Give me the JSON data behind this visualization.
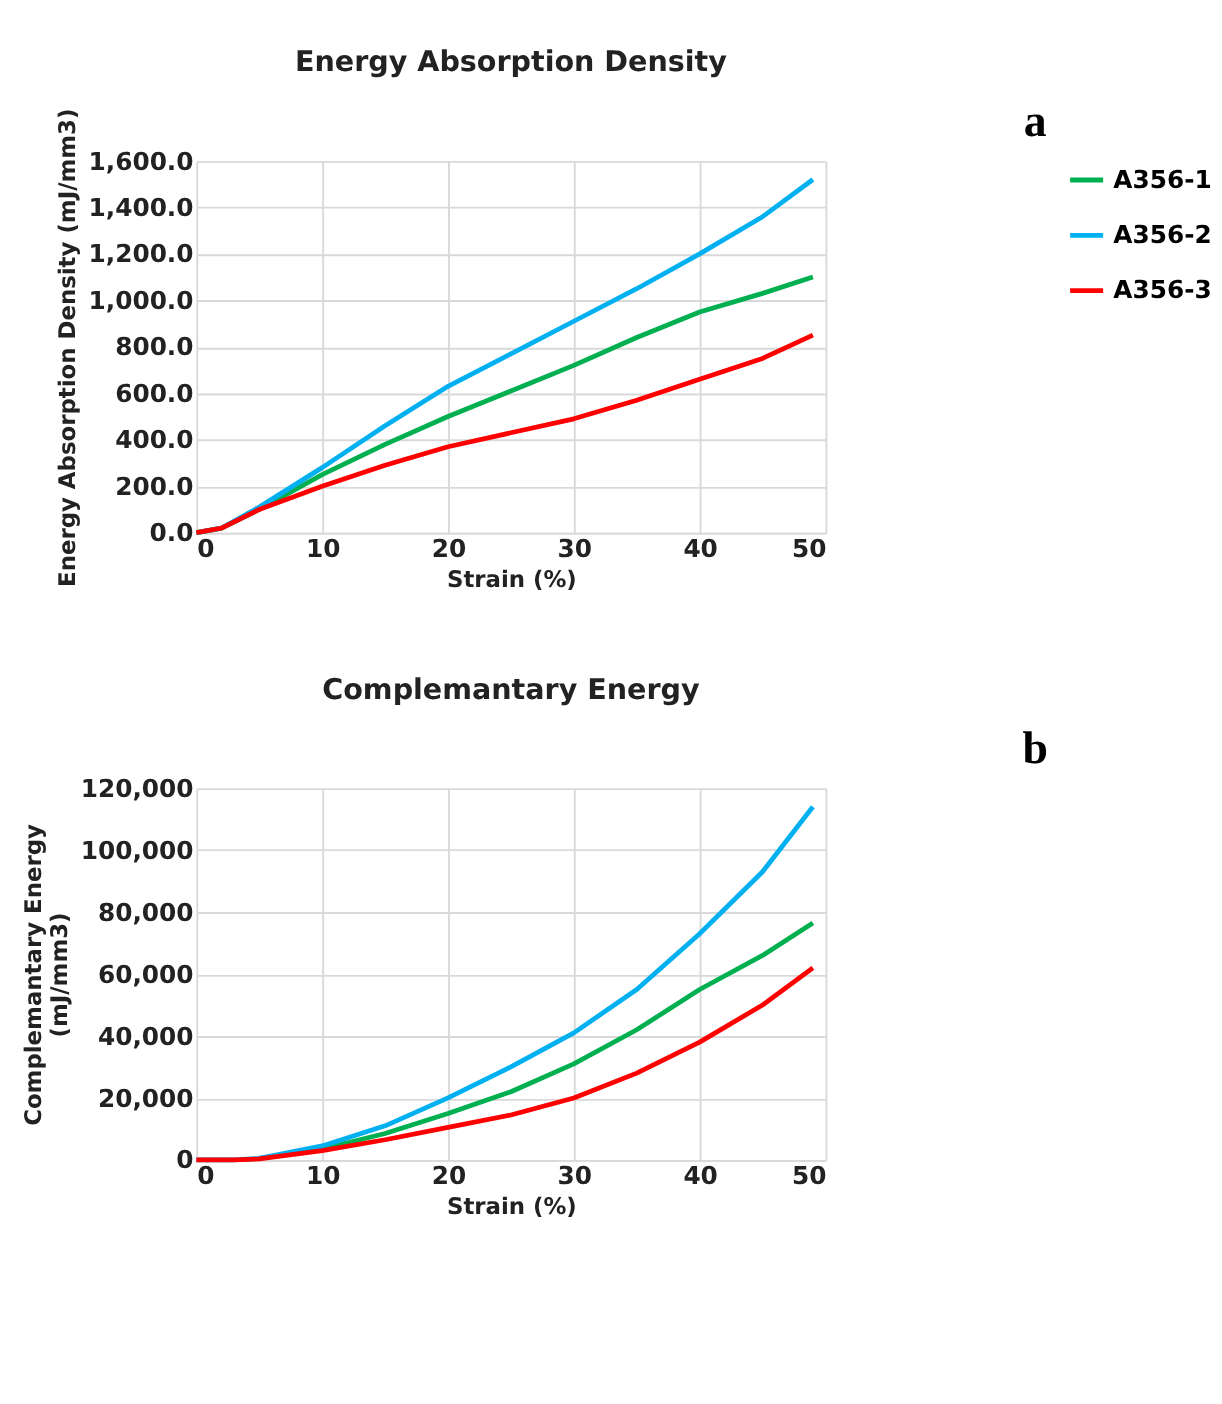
{
  "chart_data": [
    {
      "type": "line",
      "title": "Energy Absorption Density",
      "xlabel": "Strain (%)",
      "ylabel": "Energy Absorption Density (mJ/mm3)",
      "annotations": [
        "a"
      ],
      "x": [
        0,
        2,
        5,
        10,
        15,
        20,
        25,
        30,
        35,
        40,
        45,
        49
      ],
      "series": [
        {
          "name": "A356-1",
          "color": "#00b050",
          "values": [
            0,
            20,
            100,
            250,
            380,
            500,
            610,
            720,
            840,
            950,
            1030,
            1100
          ]
        },
        {
          "name": "A356-2",
          "color": "#00b0f0",
          "values": [
            0,
            20,
            110,
            280,
            460,
            630,
            770,
            910,
            1050,
            1200,
            1360,
            1520
          ]
        },
        {
          "name": "A356-3",
          "color": "#ff0000",
          "values": [
            0,
            20,
            100,
            200,
            290,
            370,
            430,
            490,
            570,
            660,
            750,
            850
          ]
        }
      ],
      "xlim": [
        0,
        50
      ],
      "xticks": [
        0,
        10,
        20,
        30,
        40,
        50
      ],
      "ylim": [
        0,
        1600
      ],
      "yticks": [
        {
          "value": 0,
          "label": "0.0"
        },
        {
          "value": 200,
          "label": "200.0"
        },
        {
          "value": 400,
          "label": "400.0"
        },
        {
          "value": 600,
          "label": "600.0"
        },
        {
          "value": 800,
          "label": "800.0"
        },
        {
          "value": 1000,
          "label": "1,000.0"
        },
        {
          "value": 1200,
          "label": "1,200.0"
        },
        {
          "value": 1400,
          "label": "1,400.0"
        },
        {
          "value": 1600,
          "label": "1,600.0"
        }
      ],
      "grid": true,
      "legend": "right",
      "marker": "none",
      "line_style": "solid"
    },
    {
      "type": "line",
      "title": "Complemantary Energy",
      "xlabel": "Strain (%)",
      "ylabel": "Complemantary Energy\n(mJ/mm3)",
      "annotations": [
        "b"
      ],
      "x": [
        0,
        3,
        5,
        10,
        15,
        20,
        25,
        30,
        35,
        40,
        45,
        49
      ],
      "series": [
        {
          "name": "A356-1",
          "color": "#00b050",
          "values": [
            null,
            null,
            500,
            3500,
            8500,
            15000,
            22000,
            31000,
            42000,
            55000,
            66000,
            76500
          ]
        },
        {
          "name": "A356-2",
          "color": "#00b0f0",
          "values": [
            0,
            0,
            500,
            4500,
            11000,
            20000,
            30000,
            41000,
            55000,
            73000,
            93000,
            114000
          ]
        },
        {
          "name": "A356-3",
          "color": "#ff0000",
          "values": [
            0,
            0,
            300,
            3000,
            6500,
            10500,
            14500,
            20000,
            28000,
            38000,
            50000,
            62000
          ]
        }
      ],
      "xlim": [
        0,
        50
      ],
      "xticks": [
        0,
        10,
        20,
        30,
        40,
        50
      ],
      "ylim": [
        0,
        120000
      ],
      "yticks": [
        0,
        {
          "value": 20000,
          "label": "20,000"
        },
        {
          "value": 40000,
          "label": "40,000"
        },
        {
          "value": 60000,
          "label": "60,000"
        },
        {
          "value": 80000,
          "label": "80,000"
        },
        {
          "value": 100000,
          "label": "100,000"
        },
        {
          "value": 120000,
          "label": "120,000"
        }
      ],
      "grid": true,
      "legend": "right",
      "marker": "none",
      "line_style": "solid"
    }
  ]
}
